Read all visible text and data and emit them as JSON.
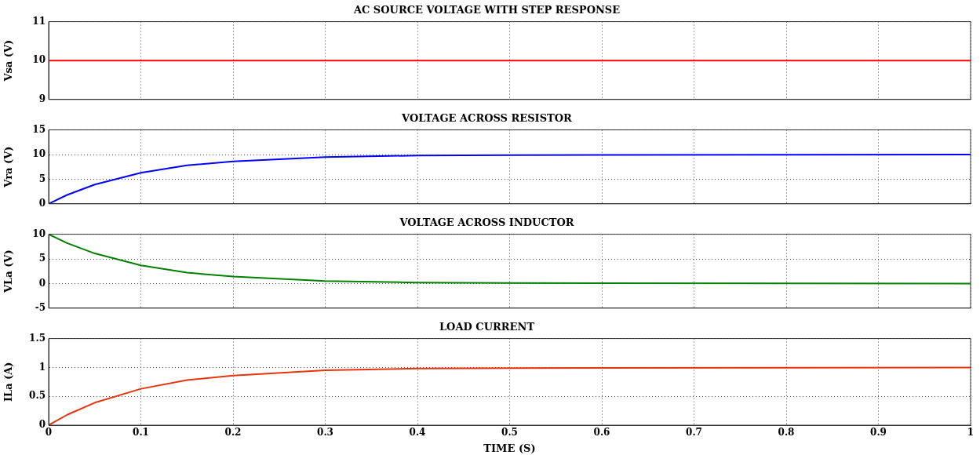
{
  "chart_data": [
    {
      "type": "line",
      "title": "AC SOURCE VOLTAGE WITH STEP RESPONSE",
      "ylabel": "Vsa (V)",
      "x": [
        0,
        1
      ],
      "series": [
        {
          "color": "#ff0000",
          "values": [
            10,
            10
          ]
        }
      ],
      "xlim": [
        0,
        1
      ],
      "xticks": [
        0,
        0.1,
        0.2,
        0.3,
        0.4,
        0.5,
        0.6,
        0.7,
        0.8,
        0.9,
        1
      ],
      "ylim": [
        9,
        11
      ],
      "yticks": [
        9,
        10,
        11
      ],
      "grid": true,
      "tick_labels": "y"
    },
    {
      "type": "line",
      "title": "VOLTAGE ACROSS RESISTOR",
      "ylabel": "Vra (V)",
      "x": [
        0,
        0.02,
        0.05,
        0.1,
        0.15,
        0.2,
        0.3,
        0.4,
        0.5,
        1
      ],
      "series": [
        {
          "color": "#0000ff",
          "values": [
            0,
            1.8,
            3.9,
            6.3,
            7.8,
            8.6,
            9.5,
            9.8,
            9.9,
            10
          ]
        }
      ],
      "xlim": [
        0,
        1
      ],
      "xticks": [
        0,
        0.1,
        0.2,
        0.3,
        0.4,
        0.5,
        0.6,
        0.7,
        0.8,
        0.9,
        1
      ],
      "ylim": [
        0,
        15
      ],
      "yticks": [
        0,
        5,
        10,
        15
      ],
      "grid": true,
      "tick_labels": "y"
    },
    {
      "type": "line",
      "title": "VOLTAGE ACROSS INDUCTOR",
      "ylabel": "VLa (V)",
      "x": [
        0,
        0.02,
        0.05,
        0.1,
        0.15,
        0.2,
        0.3,
        0.4,
        0.5,
        1
      ],
      "series": [
        {
          "color": "#008000",
          "values": [
            10,
            8.2,
            6.1,
            3.7,
            2.2,
            1.4,
            0.5,
            0.2,
            0.1,
            0
          ]
        }
      ],
      "xlim": [
        0,
        1
      ],
      "xticks": [
        0,
        0.1,
        0.2,
        0.3,
        0.4,
        0.5,
        0.6,
        0.7,
        0.8,
        0.9,
        1
      ],
      "ylim": [
        -5,
        10
      ],
      "yticks": [
        -5,
        0,
        5,
        10
      ],
      "grid": true,
      "tick_labels": "y"
    },
    {
      "type": "line",
      "title": "LOAD CURRENT",
      "xlabel": "TIME (S)",
      "ylabel": "ILa (A)",
      "x": [
        0,
        0.02,
        0.05,
        0.1,
        0.15,
        0.2,
        0.3,
        0.4,
        0.5,
        1
      ],
      "series": [
        {
          "color": "#e8340c",
          "values": [
            0,
            0.18,
            0.39,
            0.63,
            0.78,
            0.86,
            0.95,
            0.98,
            0.99,
            1
          ]
        }
      ],
      "xlim": [
        0,
        1
      ],
      "xticks": [
        0,
        0.1,
        0.2,
        0.3,
        0.4,
        0.5,
        0.6,
        0.7,
        0.8,
        0.9,
        1
      ],
      "ylim": [
        0,
        1.5
      ],
      "yticks": [
        0,
        0.5,
        1,
        1.5
      ],
      "grid": true
    }
  ]
}
